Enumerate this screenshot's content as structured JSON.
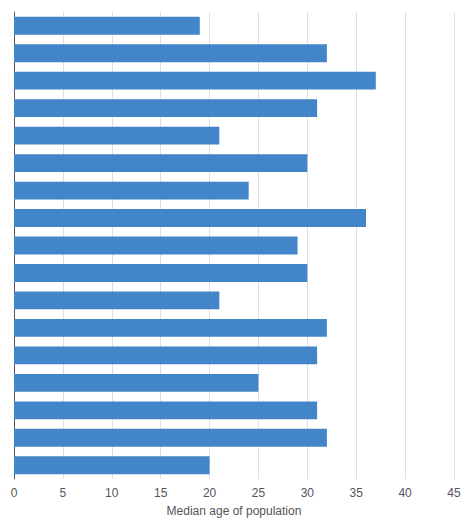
{
  "chart_data": {
    "type": "bar",
    "orientation": "horizontal",
    "categories": [
      null,
      null,
      null,
      null,
      null,
      null,
      null,
      null,
      null,
      null,
      null,
      null,
      null,
      null,
      null,
      null,
      null
    ],
    "values": [
      19,
      32,
      37,
      31,
      21,
      30,
      24,
      36,
      29,
      30,
      21,
      32,
      31,
      25,
      31,
      32,
      20
    ],
    "color": "#4285c8",
    "xlabel": "Median age of population",
    "xlim": [
      0,
      45
    ],
    "xticks": [
      0,
      5,
      10,
      15,
      20,
      25,
      30,
      35,
      40,
      45
    ],
    "grid": true,
    "tick_labels": "x"
  }
}
